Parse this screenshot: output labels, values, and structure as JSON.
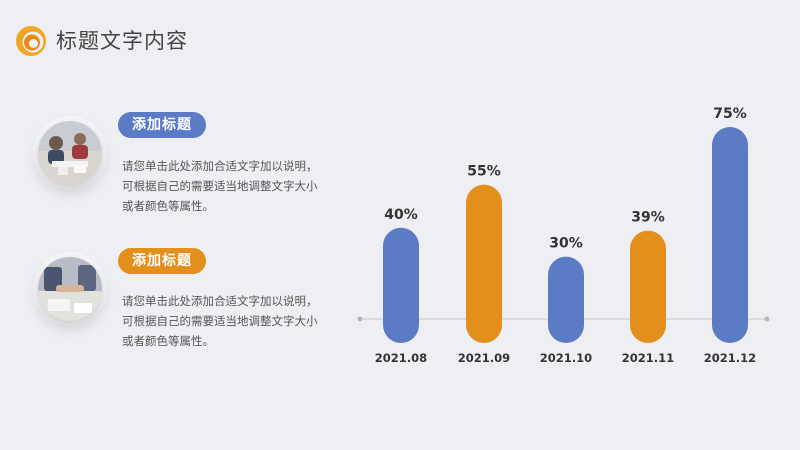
{
  "header": {
    "title": "标题文字内容",
    "logo_icon": "swirl-logo-icon"
  },
  "items": [
    {
      "badge": "添加标题",
      "color": "#5b7bc5",
      "lines": [
        "请您单击此处添加合适文字加以说明，",
        "可根据自己的需要适当地调整文字大小",
        "或者颜色等属性。"
      ],
      "photo_icon": "meeting-photo"
    },
    {
      "badge": "添加标题",
      "color": "#e28f1c",
      "lines": [
        "请您单击此处添加合适文字加以说明，",
        "可根据自己的需要适当地调整文字大小",
        "或者颜色等属性。"
      ],
      "photo_icon": "handshake-photo"
    }
  ],
  "chart_data": {
    "type": "bar",
    "categories": [
      "2021.08",
      "2021.09",
      "2021.10",
      "2021.11",
      "2021.12"
    ],
    "values": [
      40,
      55,
      30,
      39,
      75
    ],
    "labels": [
      "40%",
      "55%",
      "30%",
      "39%",
      "75%"
    ],
    "colors": [
      "#5b7bc5",
      "#e28f1c",
      "#5b7bc5",
      "#e28f1c",
      "#5b7bc5"
    ],
    "unit": "%",
    "title": "",
    "xlabel": "",
    "ylabel": "",
    "ylim": [
      0,
      75
    ],
    "grid": false
  }
}
